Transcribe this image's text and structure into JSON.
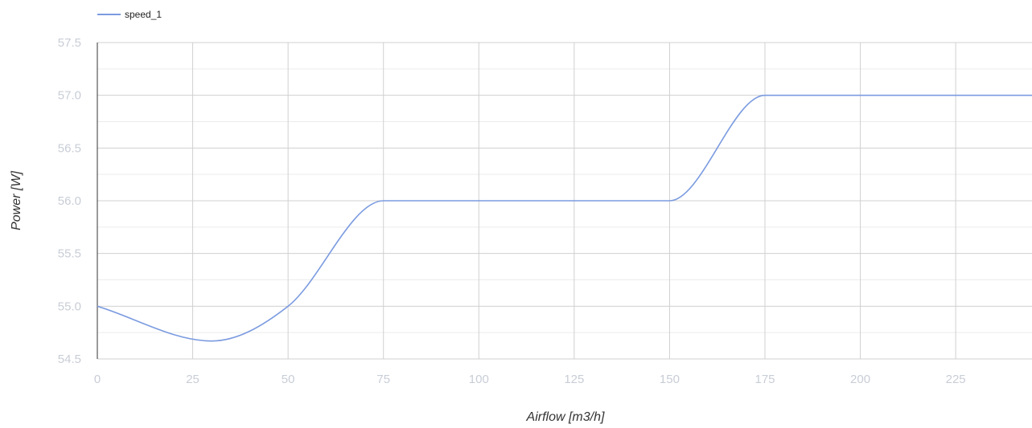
{
  "chart_data": {
    "type": "line",
    "title": "",
    "xlabel": "Airflow [m3/h]",
    "ylabel": "Power [W]",
    "xlim": [
      0,
      245
    ],
    "ylim": [
      54.5,
      57.5
    ],
    "x_ticks": [
      "0",
      "25",
      "50",
      "75",
      "100",
      "125",
      "150",
      "175",
      "200",
      "225"
    ],
    "y_ticks": [
      "54.5",
      "55.0",
      "55.5",
      "56.0",
      "56.5",
      "57.0",
      "57.5"
    ],
    "grid": true,
    "legend_position": "top-left",
    "series": [
      {
        "name": "speed_1",
        "color": "#7b9be0",
        "x": [
          0,
          30,
          50,
          75,
          100,
          125,
          150,
          175,
          200,
          225,
          245
        ],
        "y": [
          55.0,
          54.67,
          55.0,
          56.0,
          56.0,
          56.0,
          56.0,
          57.0,
          57.0,
          57.0,
          57.0
        ]
      }
    ]
  }
}
